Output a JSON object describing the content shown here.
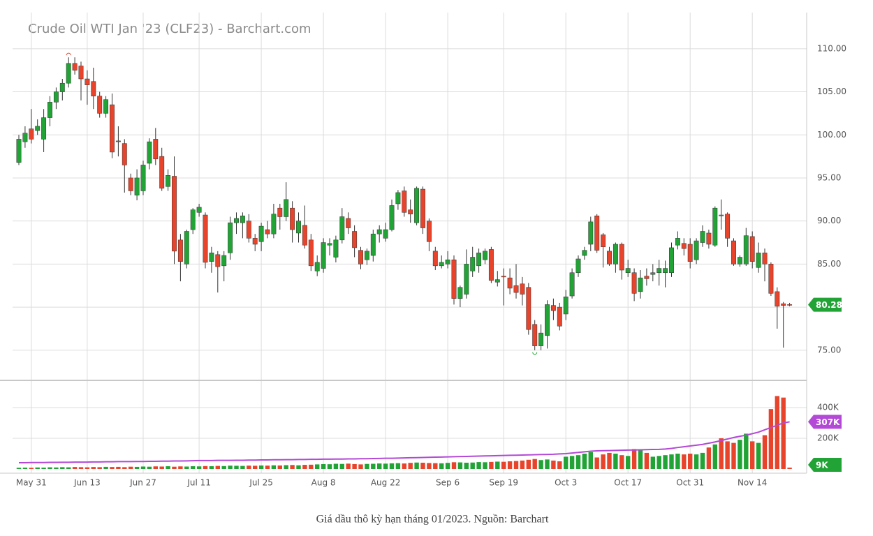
{
  "chart_data": {
    "type": "candlestick",
    "title": "Crude Oil WTI Jan '23 (CLF23) - Barchart.com",
    "categories": [
      null,
      null,
      "May 31",
      null,
      null,
      null,
      null,
      null,
      null,
      null,
      null,
      "Jun 13",
      null,
      null,
      null,
      null,
      null,
      null,
      null,
      null,
      "Jun 27",
      null,
      null,
      null,
      null,
      null,
      null,
      null,
      null,
      "Jul 11",
      null,
      null,
      null,
      null,
      null,
      null,
      null,
      null,
      null,
      "Jul 25",
      null,
      null,
      null,
      null,
      null,
      null,
      null,
      null,
      null,
      "Aug 8",
      null,
      null,
      null,
      null,
      null,
      null,
      null,
      null,
      null,
      "Aug 22",
      null,
      null,
      null,
      null,
      null,
      null,
      null,
      null,
      null,
      "Sep 6",
      null,
      null,
      null,
      null,
      null,
      null,
      null,
      null,
      "Sep 19",
      null,
      null,
      null,
      null,
      null,
      null,
      null,
      null,
      null,
      "Oct 3",
      null,
      null,
      null,
      null,
      null,
      null,
      null,
      null,
      null,
      "Oct 17",
      null,
      null,
      null,
      null,
      null,
      null,
      null,
      null,
      null,
      "Oct 31",
      null,
      null,
      null,
      null,
      null,
      null,
      null,
      null,
      null,
      "Nov 14",
      null,
      null,
      null,
      null,
      null,
      null
    ],
    "open": [
      96.8,
      99.2,
      100.7,
      100.5,
      99.5,
      102,
      103.8,
      105,
      106,
      108.3,
      108,
      106.5,
      106.2,
      104.5,
      102.5,
      103.5,
      99.3,
      99,
      95,
      93,
      93.5,
      96.7,
      99.5,
      97.5,
      94,
      95.2,
      87.8,
      85,
      89,
      91,
      90.7,
      85.3,
      86.1,
      84.8,
      86.3,
      89.8,
      89.8,
      90,
      88,
      87.6,
      89,
      88.5,
      91.5,
      90.5,
      91.5,
      88.6,
      89.5,
      87.8,
      84.2,
      84.5,
      87.2,
      85.8,
      87.8,
      90.3,
      88.8,
      86.6,
      85.5,
      86,
      88.5,
      88,
      89,
      92,
      93.5,
      91.3,
      89.8,
      93.7,
      90,
      86.5,
      84.8,
      85,
      85.5,
      81,
      81.5,
      84.2,
      84.8,
      85.5,
      86.7,
      82.9,
      83.6,
      83.4,
      82.5,
      82.7,
      82.3,
      78,
      75.5,
      76.7,
      80.2,
      80,
      79.2,
      81.3,
      84,
      86,
      87.3,
      90.6,
      88.4,
      86.5,
      85,
      87.3,
      84,
      84,
      81.8,
      83.6,
      83.8,
      84,
      84,
      84,
      87.2,
      87.4,
      87.3,
      85.5,
      87.5,
      88.6,
      87.2,
      90.7,
      90.8,
      87.7,
      85,
      85,
      88.2,
      84.6,
      86.3,
      85,
      81.8,
      80.4,
      80.3
    ],
    "high": [
      100,
      101,
      103,
      101.8,
      103,
      104.5,
      105.5,
      106.5,
      109,
      109,
      108.5,
      107.5,
      107.8,
      105,
      104.5,
      104.8,
      101,
      99.5,
      95.5,
      96,
      97,
      99.6,
      100.8,
      98.5,
      96,
      97.5,
      88.5,
      89,
      91.5,
      92,
      91,
      87,
      86.5,
      86.5,
      90.5,
      91,
      91,
      90.8,
      88.5,
      89.8,
      90,
      92,
      92,
      94.5,
      92.3,
      91,
      91.8,
      88.5,
      86,
      88,
      88,
      88.3,
      91.5,
      91,
      89.5,
      87,
      86.8,
      89,
      89.5,
      89.8,
      92.5,
      93.6,
      94,
      92.5,
      94,
      94,
      90.3,
      87,
      86,
      86.5,
      86,
      82.5,
      86.7,
      87,
      86.8,
      86.8,
      87,
      84.2,
      84.5,
      84.5,
      85,
      83.5,
      82.8,
      78.5,
      78,
      80.8,
      81,
      80.5,
      82,
      84.5,
      86,
      87,
      90.5,
      90.8,
      88.6,
      87,
      87.5,
      87.5,
      85.5,
      84.5,
      84.3,
      84.5,
      85,
      85.5,
      85.4,
      87.5,
      88.8,
      88,
      88,
      88,
      89.5,
      89,
      91.7,
      92.5,
      91,
      88,
      86,
      89.2,
      88.8,
      87.5,
      86.8,
      85.2,
      82.3,
      80.6,
      80.5
    ],
    "low": [
      96.5,
      98.5,
      99,
      100,
      98,
      101,
      103,
      104,
      105.5,
      107,
      104,
      103.5,
      103,
      102,
      102,
      97.3,
      97.5,
      93.3,
      93,
      92.4,
      93,
      96,
      96.5,
      93.5,
      93.5,
      85,
      83,
      84.5,
      88.5,
      90.5,
      84.5,
      84,
      81.7,
      83,
      85.5,
      88.5,
      88,
      87.5,
      86.5,
      86.5,
      88,
      88,
      89,
      90,
      87.5,
      87.5,
      86.8,
      84.2,
      83.6,
      84,
      86,
      85.2,
      87.4,
      88.5,
      85.8,
      84.4,
      84.9,
      85.3,
      87.5,
      87.6,
      88.8,
      91.3,
      90.5,
      89.8,
      89.5,
      88.5,
      86.5,
      84.3,
      84.5,
      84.5,
      80.3,
      80,
      81,
      83.5,
      84,
      85,
      82.8,
      82.4,
      80.2,
      81.5,
      81,
      80.2,
      76.8,
      75,
      75,
      75.2,
      78.5,
      77.3,
      78.5,
      81,
      83.5,
      85.5,
      86.5,
      86.3,
      84.6,
      84.8,
      84,
      83.2,
      83.5,
      80.7,
      81,
      82.5,
      83,
      82.5,
      82.3,
      83.5,
      86.7,
      86,
      84.5,
      85,
      87,
      86.8,
      87,
      89,
      87,
      84.8,
      84.7,
      84.8,
      84.5,
      84,
      83,
      81.3,
      77.5,
      75.3,
      80.1
    ],
    "close": [
      99.5,
      100.2,
      99.5,
      101,
      102,
      103.8,
      105,
      106,
      108.3,
      107.5,
      106.5,
      105.8,
      104.5,
      102.5,
      104.1,
      98,
      99.2,
      96.5,
      93.5,
      95,
      96.5,
      99.2,
      97.2,
      93.8,
      95.3,
      86.5,
      85.3,
      88.8,
      91.3,
      91.6,
      85.2,
      86.3,
      84.7,
      86,
      89.8,
      90.3,
      90.6,
      88,
      87.3,
      89.4,
      88.5,
      90.8,
      90.5,
      92.5,
      89,
      90,
      87.2,
      84.8,
      85.2,
      87.5,
      87.4,
      87.8,
      90.5,
      89.2,
      86.9,
      85,
      86.5,
      88.5,
      89,
      89,
      91.8,
      93.3,
      91,
      90.8,
      93.8,
      89.2,
      87.6,
      84.8,
      85.2,
      85.5,
      81,
      82.3,
      85,
      85.8,
      86.3,
      86.5,
      83.1,
      83.2,
      83.5,
      82.2,
      81.7,
      81.5,
      77.4,
      75.5,
      77,
      80.3,
      79.6,
      77.8,
      81.2,
      84,
      85.6,
      86.6,
      89.9,
      86.6,
      87,
      85,
      87.3,
      84.3,
      84.5,
      81.6,
      83.4,
      83.3,
      84,
      84.5,
      84.5,
      86.9,
      88,
      86.8,
      85.3,
      87.7,
      88.8,
      87.3,
      91.5,
      90.6,
      88,
      85,
      85.8,
      88.3,
      85.3,
      86.3,
      85,
      81.6,
      80.1,
      80.2,
      80.28
    ],
    "up_color": "#21a336",
    "down_color": "#e8432b",
    "ylim": [
      71.5,
      114.2
    ],
    "yticks": [
      {
        "value": 75,
        "label": "75.00"
      },
      {
        "value": 80,
        "label": "80.00"
      },
      {
        "value": 85,
        "label": "85.00"
      },
      {
        "value": 90,
        "label": "90.00"
      },
      {
        "value": 95,
        "label": "95.00"
      },
      {
        "value": 100,
        "label": "100.00"
      },
      {
        "value": 105,
        "label": "105.00"
      },
      {
        "value": 110,
        "label": "110.00"
      }
    ],
    "grid": true,
    "volume": {
      "ylim": [
        0,
        577000
      ],
      "yticks": [
        {
          "value": 200000,
          "label": "200K"
        },
        {
          "value": 400000,
          "label": "400K"
        }
      ],
      "values": [
        8000,
        9000,
        8000,
        10000,
        9000,
        11000,
        10000,
        12000,
        11000,
        13000,
        12000,
        11000,
        13000,
        12000,
        14000,
        13000,
        14000,
        12000,
        15000,
        14000,
        16000,
        15000,
        17000,
        16000,
        18000,
        15000,
        17000,
        16000,
        18000,
        17000,
        19000,
        18000,
        20000,
        19000,
        22000,
        21000,
        20000,
        22000,
        21000,
        23000,
        22000,
        24000,
        23000,
        25000,
        26000,
        24000,
        27000,
        28000,
        30000,
        32000,
        31000,
        34000,
        33000,
        35000,
        32000,
        30000,
        33000,
        34000,
        36000,
        35000,
        37000,
        38000,
        36000,
        40000,
        42000,
        41000,
        39000,
        38000,
        37000,
        40000,
        44000,
        43000,
        41000,
        42000,
        45000,
        44000,
        46000,
        48000,
        47000,
        50000,
        52000,
        55000,
        60000,
        65000,
        58000,
        62000,
        55000,
        50000,
        80000,
        85000,
        90000,
        100000,
        110000,
        75000,
        95000,
        105000,
        100000,
        90000,
        85000,
        130000,
        125000,
        105000,
        80000,
        85000,
        90000,
        95000,
        100000,
        95000,
        100000,
        95000,
        105000,
        140000,
        160000,
        200000,
        180000,
        170000,
        190000,
        230000,
        180000,
        170000,
        220000,
        390000,
        475000,
        465000,
        9000
      ],
      "value_labels": [
        null,
        null,
        null,
        null,
        null,
        null,
        null,
        null,
        null,
        null,
        null,
        null,
        null,
        null,
        null,
        null,
        null,
        null,
        null,
        null,
        null,
        null,
        null,
        null,
        null,
        null,
        null,
        null,
        null,
        null,
        null,
        null,
        null,
        null,
        null,
        null,
        null,
        null,
        null,
        null,
        null,
        null,
        null,
        null,
        null,
        null,
        null,
        null,
        null,
        null,
        null,
        null,
        null,
        null,
        null,
        null,
        null,
        null,
        null,
        null,
        null,
        null,
        null,
        null,
        null,
        null,
        null,
        null,
        null,
        null,
        null,
        null,
        null,
        null,
        null,
        null,
        null,
        null,
        null,
        null,
        null,
        null,
        null,
        null,
        null,
        null,
        null,
        null,
        null,
        null,
        null,
        null,
        null,
        null,
        null,
        null,
        null,
        null,
        null,
        null,
        null,
        null,
        null,
        null,
        null,
        null,
        null,
        null,
        null,
        null,
        null,
        null,
        null,
        null,
        null,
        null,
        null,
        null,
        null,
        null,
        null,
        null,
        null,
        null,
        "9K"
      ],
      "ma_color": "#b349d6",
      "ma": [
        41000,
        41000,
        42000,
        42000,
        42000,
        43000,
        43000,
        44000,
        44000,
        45000,
        45000,
        45000,
        46000,
        46000,
        47000,
        47000,
        48000,
        48000,
        48000,
        49000,
        49000,
        50000,
        50000,
        51000,
        51000,
        52000,
        52000,
        53000,
        54000,
        55000,
        55000,
        55000,
        56000,
        56000,
        56000,
        57000,
        57000,
        58000,
        58000,
        59000,
        59000,
        60000,
        60000,
        61000,
        61000,
        62000,
        62000,
        63000,
        63000,
        64000,
        64000,
        65000,
        65000,
        66000,
        66000,
        67000,
        67000,
        68000,
        69000,
        70000,
        70000,
        71000,
        72000,
        73000,
        74000,
        75000,
        76000,
        77000,
        78000,
        79000,
        80000,
        81000,
        82000,
        83000,
        84000,
        85000,
        86000,
        87000,
        88000,
        89000,
        90000,
        91000,
        92000,
        93000,
        94000,
        95000,
        96000,
        98000,
        100000,
        104000,
        108000,
        112000,
        116000,
        118000,
        119000,
        120000,
        121000,
        122000,
        123000,
        124000,
        125000,
        126000,
        127000,
        128000,
        130000,
        134000,
        140000,
        145000,
        150000,
        155000,
        160000,
        168000,
        176000,
        185000,
        195000,
        205000,
        213000,
        220000,
        230000,
        240000,
        255000,
        270000,
        285000,
        300000,
        307000
      ],
      "ma_value_labels": [
        null,
        null,
        null,
        null,
        null,
        null,
        null,
        null,
        null,
        null,
        null,
        null,
        null,
        null,
        null,
        null,
        null,
        null,
        null,
        null,
        null,
        null,
        null,
        null,
        null,
        null,
        null,
        null,
        null,
        null,
        null,
        null,
        null,
        null,
        null,
        null,
        null,
        null,
        null,
        null,
        null,
        null,
        null,
        null,
        null,
        null,
        null,
        null,
        null,
        null,
        null,
        null,
        null,
        null,
        null,
        null,
        null,
        null,
        null,
        null,
        null,
        null,
        null,
        null,
        null,
        null,
        null,
        null,
        null,
        null,
        null,
        null,
        null,
        null,
        null,
        null,
        null,
        null,
        null,
        null,
        null,
        null,
        null,
        null,
        null,
        null,
        null,
        null,
        null,
        null,
        null,
        null,
        null,
        null,
        null,
        null,
        null,
        null,
        null,
        null,
        null,
        null,
        null,
        null,
        null,
        null,
        null,
        null,
        null,
        null,
        null,
        null,
        null,
        null,
        null,
        null,
        null,
        null,
        null,
        null,
        null,
        null,
        null,
        null,
        "307K"
      ]
    }
  },
  "caption": "Giá dầu thô kỳ hạn tháng 01/2023. Nguồn: Barchart"
}
